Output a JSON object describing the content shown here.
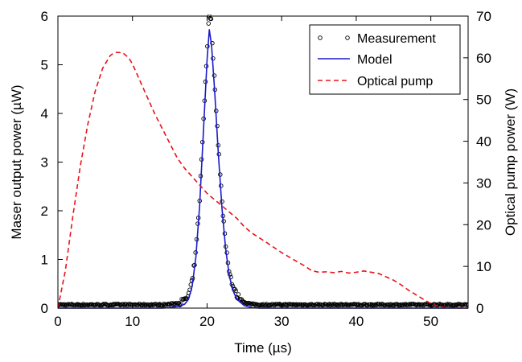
{
  "chart_data": {
    "type": "line",
    "xlabel": "Time (µs)",
    "ylabel_left": "Maser output power (µW)",
    "ylabel_right": "Optical pump power (W)",
    "xlim": [
      0,
      55
    ],
    "ylim_left": [
      0,
      6
    ],
    "ylim_right": [
      0,
      70
    ],
    "x_ticks": [
      0,
      10,
      20,
      30,
      40,
      50
    ],
    "y_left_ticks": [
      0,
      1,
      2,
      3,
      4,
      5,
      6
    ],
    "y_right_ticks": [
      0,
      10,
      20,
      30,
      40,
      50,
      60,
      70
    ],
    "grid": false,
    "legend_position": "top-right",
    "colors": {
      "measurement": "#000000",
      "model": "#1a1acc",
      "pump": "#e8131b"
    },
    "series": [
      {
        "name": "Measurement",
        "style": "markers",
        "axis": "left",
        "peak": {
          "x": 20.3,
          "y": 5.95
        },
        "baseline": 0.07
      },
      {
        "name": "Model",
        "style": "solid-line",
        "axis": "left",
        "x": [
          0,
          14,
          15,
          16,
          17,
          17.5,
          18,
          18.5,
          19,
          19.5,
          20,
          20.3,
          20.6,
          21,
          21.5,
          22,
          22.5,
          23,
          23.5,
          24,
          25,
          26,
          27,
          55
        ],
        "y": [
          0,
          0,
          0.01,
          0.03,
          0.08,
          0.18,
          0.45,
          1.05,
          2.1,
          3.6,
          5.1,
          5.72,
          5.4,
          4.5,
          3.2,
          2.05,
          1.2,
          0.65,
          0.35,
          0.18,
          0.05,
          0.01,
          0,
          0
        ]
      },
      {
        "name": "Optical pump",
        "style": "dashed-line",
        "axis": "right",
        "x": [
          0,
          1,
          2,
          3,
          4,
          5,
          6,
          7,
          7.5,
          8,
          8.7,
          9.5,
          10,
          11,
          12,
          13,
          14,
          15,
          16,
          17,
          18,
          19,
          20,
          21,
          22,
          23,
          24,
          25,
          26,
          28,
          30,
          32,
          33,
          34,
          35,
          36,
          37,
          38,
          39,
          40,
          41,
          42,
          43,
          44,
          45,
          46,
          47,
          48,
          49,
          50,
          51,
          52,
          53,
          54,
          55
        ],
        "y": [
          0,
          9,
          22,
          34,
          44,
          52,
          57.5,
          60.5,
          61.2,
          61.3,
          61.2,
          60,
          58.5,
          54.5,
          50.5,
          46.5,
          43,
          39.5,
          36,
          33.5,
          31.5,
          29.5,
          27.5,
          26,
          24.5,
          23,
          21.5,
          19.5,
          18,
          15.7,
          13.3,
          11.2,
          10.2,
          9,
          8.6,
          8.7,
          8.5,
          8.8,
          8.4,
          8.6,
          8.9,
          8.6,
          8.3,
          7.5,
          6.7,
          5.6,
          4.3,
          3.2,
          2.1,
          1.1,
          0.4,
          0.1,
          0.05,
          0,
          0
        ]
      }
    ]
  }
}
